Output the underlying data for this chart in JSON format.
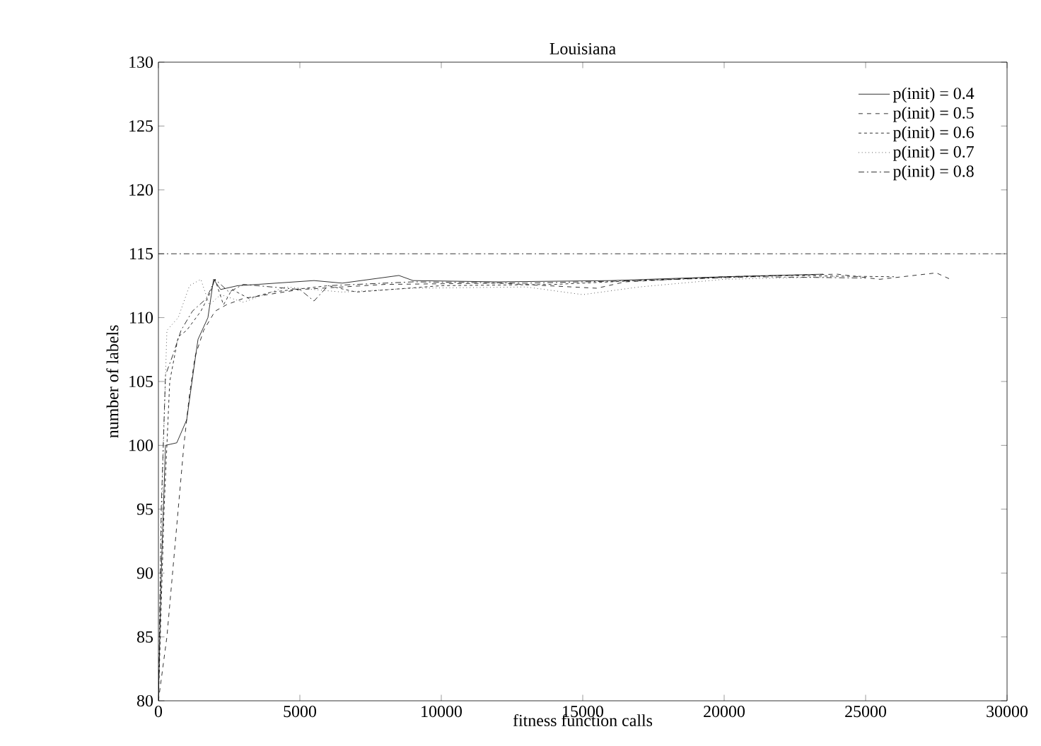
{
  "chart_data": {
    "type": "line",
    "title": "Louisiana",
    "xlabel": "fitness function calls",
    "ylabel": "number of labels",
    "xlim": [
      0,
      30000
    ],
    "ylim": [
      80,
      130
    ],
    "xticks": [
      0,
      5000,
      10000,
      15000,
      20000,
      25000,
      30000
    ],
    "yticks": [
      80,
      85,
      90,
      95,
      100,
      105,
      110,
      115,
      120,
      125,
      130
    ],
    "grid": false,
    "legend": "top right",
    "marker": "none",
    "ref_lines": [
      {
        "axis": "y",
        "value": 115,
        "color": "#000000",
        "line_style": "dashdot"
      }
    ],
    "series": [
      {
        "name": "p(init) = 0.4",
        "color": "#000000",
        "line_style": "solid",
        "x": [
          0,
          100,
          250,
          650,
          1000,
          1250,
          1400,
          1750,
          1950,
          2200,
          2800,
          3500,
          5500,
          6500,
          8500,
          9000,
          12000,
          16000,
          20000,
          23500
        ],
        "values": [
          80,
          90,
          100,
          100.2,
          102,
          106,
          108.3,
          110,
          113,
          112.2,
          112.5,
          112.6,
          112.9,
          112.7,
          113.3,
          112.9,
          112.8,
          112.9,
          113.2,
          113.4
        ]
      },
      {
        "name": "p(init) = 0.5",
        "color": "#000000",
        "line_style": "dashed",
        "x": [
          0,
          300,
          700,
          900,
          1100,
          1300,
          1600,
          2000,
          2400,
          3000,
          5000,
          8000,
          12000,
          15500,
          16500,
          20000,
          24000,
          25500,
          27500,
          28000
        ],
        "values": [
          80,
          85,
          95,
          100,
          104,
          107,
          109,
          110.5,
          111,
          111.5,
          112.2,
          112.6,
          112.7,
          112.3,
          112.8,
          113.2,
          113.4,
          113,
          113.5,
          113
        ]
      },
      {
        "name": "p(init) = 0.6",
        "color": "#000000",
        "line_style": "densely dashed",
        "x": [
          0,
          200,
          400,
          700,
          1000,
          1500,
          1800,
          2000,
          2300,
          2600,
          3200,
          4000,
          6000,
          7000,
          10000,
          14000,
          18000,
          22000,
          26000
        ],
        "values": [
          80,
          95,
          105,
          108.5,
          109,
          110.5,
          111.8,
          113,
          111,
          112.2,
          111.5,
          112,
          112.5,
          112,
          112.5,
          112.6,
          113,
          113.3,
          113.2
        ]
      },
      {
        "name": "p(init) = 0.7",
        "color": "#000000",
        "line_style": "dotted",
        "x": [
          0,
          150,
          300,
          700,
          1100,
          1500,
          1800,
          2200,
          3000,
          4500,
          6500,
          9000,
          13000,
          15000,
          17000,
          20000,
          24000
        ],
        "values": [
          80,
          98,
          109,
          110,
          112.5,
          113,
          111,
          111.8,
          111.2,
          112.4,
          112,
          112.3,
          112.4,
          111.8,
          112.4,
          113,
          113.2
        ]
      },
      {
        "name": "p(init) = 0.8",
        "color": "#000000",
        "line_style": "dashdot",
        "x": [
          0,
          100,
          250,
          500,
          800,
          1200,
          1700,
          2000,
          2500,
          3000,
          5000,
          5500,
          6000,
          9000,
          13000,
          17000,
          21000,
          25000
        ],
        "values": [
          80,
          95,
          105.5,
          107,
          109,
          110.5,
          111.5,
          113,
          112,
          112.6,
          112.2,
          111.3,
          112.5,
          112.8,
          112.7,
          112.9,
          113.2,
          113.1
        ]
      }
    ]
  }
}
